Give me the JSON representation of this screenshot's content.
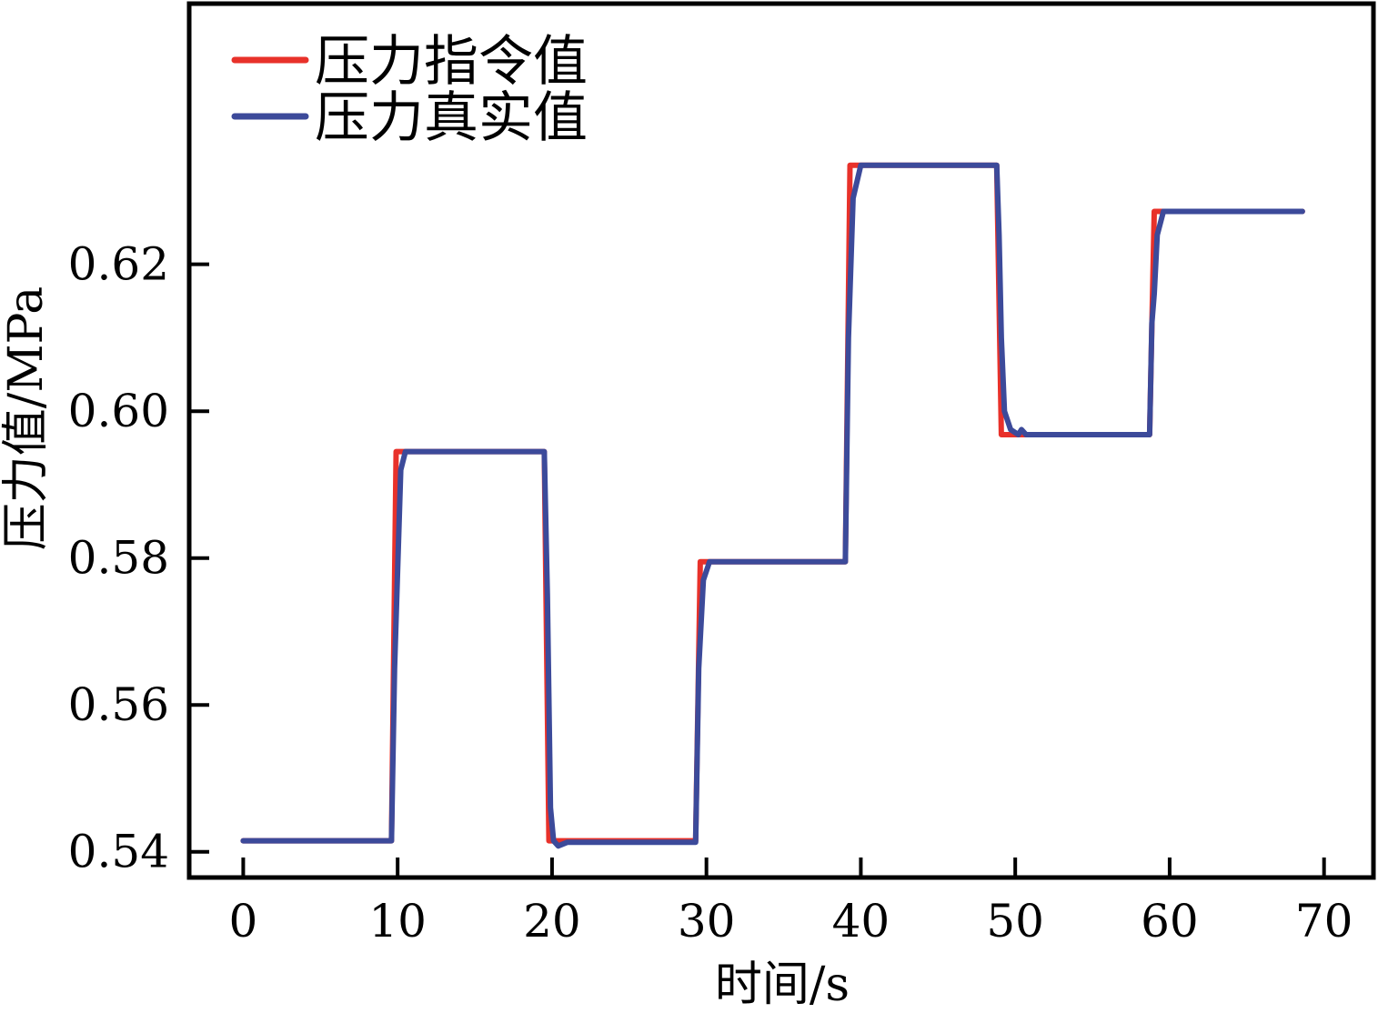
{
  "chart_data": {
    "type": "line",
    "title": "",
    "xlabel": "时间/s",
    "ylabel": "压力值/MPa",
    "xlim": [
      -3.5,
      73.2
    ],
    "ylim": [
      0.5365,
      0.6555
    ],
    "xticks": [
      0,
      10,
      20,
      30,
      40,
      50,
      60,
      70
    ],
    "xtick_labels": [
      "0",
      "10",
      "20",
      "30",
      "40",
      "50",
      "60",
      "70"
    ],
    "yticks": [
      0.54,
      0.56,
      0.58,
      0.6,
      0.62
    ],
    "ytick_labels": [
      "0.54",
      "0.56",
      "0.58",
      "0.60",
      "0.62"
    ],
    "grid": false,
    "legend_position": "top-left",
    "series": [
      {
        "name": "压力指令值",
        "color": "#e8312a",
        "x": [
          0,
          9.6,
          9.9,
          19.5,
          19.8,
          29.3,
          29.6,
          39.0,
          39.3,
          48.8,
          49.1,
          58.7,
          59.0,
          68.6
        ],
        "y": [
          0.5415,
          0.5415,
          0.5945,
          0.5945,
          0.5415,
          0.5415,
          0.5795,
          0.5795,
          0.6335,
          0.6335,
          0.5968,
          0.5968,
          0.6272,
          0.6272
        ]
      },
      {
        "name": "压力真实值",
        "color": "#3c4a9a",
        "x": [
          0,
          9.6,
          9.8,
          10.2,
          10.5,
          19.5,
          19.7,
          19.9,
          20.1,
          20.4,
          21.0,
          29.3,
          29.5,
          29.8,
          30.2,
          39.0,
          39.2,
          39.5,
          40.0,
          48.8,
          48.95,
          49.1,
          49.3,
          49.7,
          50.2,
          50.4,
          50.7,
          58.7,
          58.85,
          59.0,
          59.2,
          59.6,
          68.6
        ],
        "y": [
          0.5415,
          0.5415,
          0.565,
          0.592,
          0.5945,
          0.5945,
          0.575,
          0.546,
          0.5415,
          0.5408,
          0.5413,
          0.5413,
          0.565,
          0.577,
          0.5795,
          0.5795,
          0.61,
          0.629,
          0.6335,
          0.6335,
          0.624,
          0.61,
          0.6,
          0.5975,
          0.5968,
          0.5975,
          0.5968,
          0.5968,
          0.612,
          0.616,
          0.624,
          0.6272,
          0.6272
        ]
      }
    ]
  }
}
